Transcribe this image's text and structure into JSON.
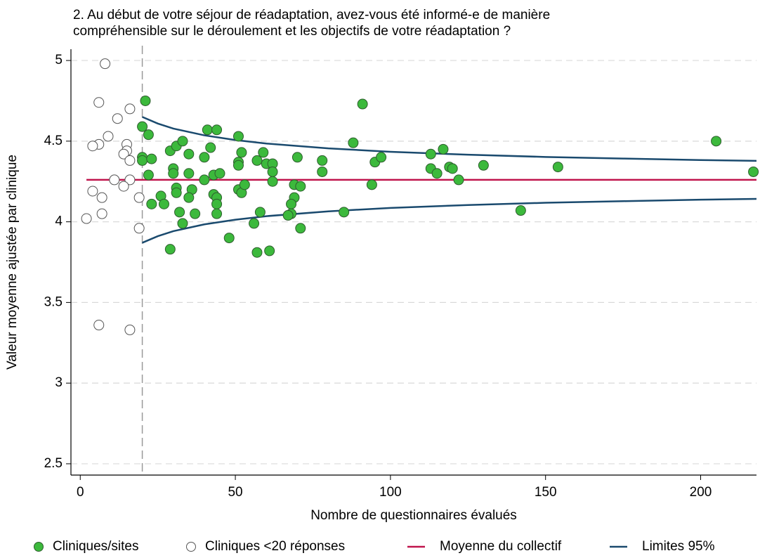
{
  "chart_data": {
    "type": "scatter",
    "title": [
      "2. Au début de votre séjour de réadaptation, avez-vous été informé-e de manière",
      "compréhensible sur le déroulement et les objectifs de votre réadaptation ?"
    ],
    "x_label": "Nombre de questionnaires évalués",
    "y_label": "Valeur moyenne ajustée par clinique",
    "xlim": [
      -3,
      218
    ],
    "ylim": [
      2.43,
      5.07
    ],
    "xticks": [
      0,
      50,
      100,
      150,
      200
    ],
    "yticks": [
      2.5,
      3,
      3.5,
      4,
      4.5,
      5
    ],
    "grid": true,
    "legend": "bottom",
    "vline": 20,
    "series": [
      {
        "name": "Cliniques/sites",
        "color": "#3cb93c",
        "x": [
          21,
          20,
          22,
          20,
          20,
          23,
          22,
          23,
          26,
          27,
          29,
          31,
          33,
          30,
          30,
          31,
          31,
          32,
          33,
          29,
          35,
          35,
          36,
          35,
          37,
          40,
          41,
          42,
          40,
          43,
          43,
          44,
          44,
          44,
          44,
          45,
          48,
          51,
          52,
          51,
          51,
          51,
          52,
          53,
          57,
          59,
          60,
          56,
          58,
          57,
          61,
          62,
          62,
          62,
          70,
          69,
          69,
          71,
          68,
          68,
          67,
          71,
          78,
          78,
          85,
          88,
          91,
          94,
          95,
          97,
          113,
          113,
          115,
          117,
          119,
          120,
          122,
          130,
          142,
          154,
          205,
          217
        ],
        "values": [
          4.75,
          4.59,
          4.54,
          4.4,
          4.38,
          4.39,
          4.29,
          4.11,
          4.16,
          4.11,
          4.44,
          4.47,
          4.5,
          4.33,
          4.3,
          4.21,
          4.18,
          4.06,
          3.99,
          3.83,
          4.3,
          4.42,
          4.2,
          4.15,
          4.05,
          4.4,
          4.57,
          4.46,
          4.26,
          4.29,
          4.17,
          4.15,
          4.11,
          4.05,
          4.57,
          4.3,
          3.9,
          4.53,
          4.43,
          4.37,
          4.35,
          4.2,
          4.18,
          4.23,
          4.38,
          4.43,
          4.36,
          3.99,
          4.06,
          3.81,
          3.82,
          4.36,
          4.31,
          4.25,
          4.4,
          4.23,
          4.15,
          4.22,
          4.11,
          4.05,
          4.04,
          3.96,
          4.38,
          4.31,
          4.06,
          4.49,
          4.73,
          4.23,
          4.37,
          4.4,
          4.42,
          4.33,
          4.3,
          4.45,
          4.34,
          4.33,
          4.26,
          4.35,
          4.07,
          4.34,
          4.5,
          4.31
        ]
      },
      {
        "name": "Cliniques <20 réponses",
        "color": "#ffffff",
        "x": [
          8,
          6,
          16,
          12,
          9,
          6,
          4,
          15,
          15,
          14,
          16,
          11,
          16,
          14,
          19,
          4,
          7,
          7,
          2,
          19,
          6,
          16
        ],
        "values": [
          4.98,
          4.74,
          4.7,
          4.64,
          4.53,
          4.48,
          4.47,
          4.48,
          4.44,
          4.42,
          4.38,
          4.26,
          4.26,
          4.22,
          4.15,
          4.19,
          4.15,
          4.05,
          4.02,
          3.96,
          3.36,
          3.33
        ]
      },
      {
        "name": "Moyenne du collectif",
        "color": "#c0144c",
        "type": "line",
        "x": [
          2,
          218
        ],
        "values": [
          4.26,
          4.26
        ]
      },
      {
        "name": "Limites 95%",
        "color": "#1a4a6e",
        "type": "band",
        "x": [
          20,
          25,
          30,
          40,
          50,
          60,
          80,
          100,
          125,
          150,
          175,
          200,
          218
        ],
        "upper": [
          4.65,
          4.609,
          4.578,
          4.536,
          4.507,
          4.485,
          4.455,
          4.434,
          4.416,
          4.402,
          4.392,
          4.383,
          4.378
        ],
        "lower": [
          3.87,
          3.911,
          3.942,
          3.984,
          4.013,
          4.035,
          4.065,
          4.086,
          4.104,
          4.118,
          4.128,
          4.137,
          4.142
        ]
      }
    ]
  }
}
